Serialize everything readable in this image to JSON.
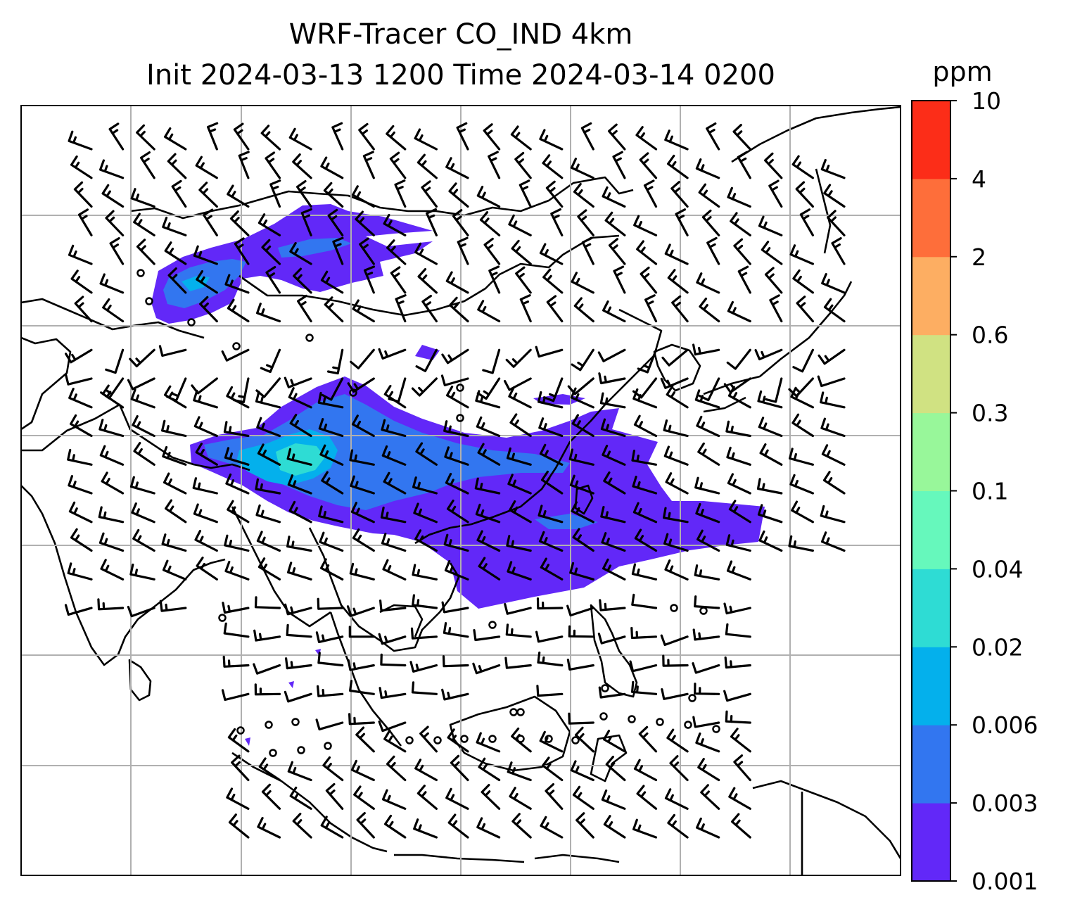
{
  "title": {
    "line1": "WRF-Tracer CO_IND 4km",
    "line2": "Init 2024-03-13 1200 Time 2024-03-14 0200"
  },
  "colorbar": {
    "units": "ppm",
    "levels": [
      "0.001",
      "0.003",
      "0.006",
      "0.02",
      "0.04",
      "0.1",
      "0.3",
      "0.6",
      "2",
      "4",
      "10"
    ],
    "colors": [
      "#6228f8",
      "#3276f0",
      "#04b0ec",
      "#2edcd4",
      "#66f8bc",
      "#98f79a",
      "#d0e282",
      "#fdae62",
      "#fe6e3a",
      "#fc2d18"
    ]
  },
  "map": {
    "field": "CO_IND",
    "gridline_color": "#b0b0b0",
    "coastline_color": "#000000",
    "plume_colors": {
      "low": "#6228f8",
      "mid": "#3276f0",
      "high": "#04b0ec",
      "peak": "#2edcd4"
    },
    "wind_barbs": "black",
    "calm_marker": "circle"
  }
}
